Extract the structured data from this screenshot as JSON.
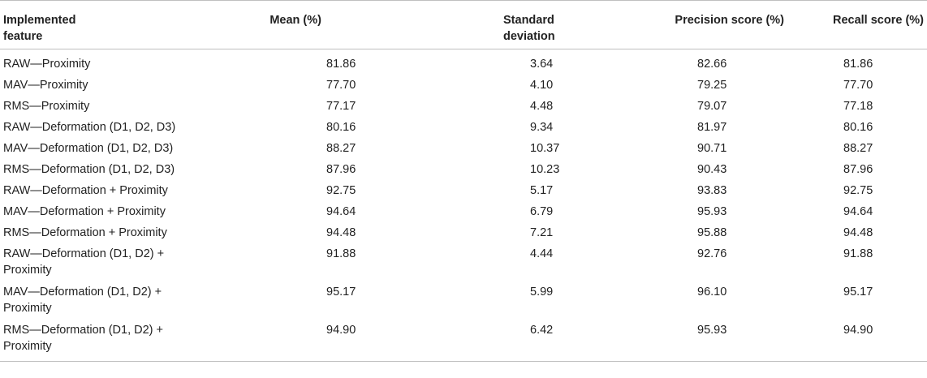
{
  "table": {
    "headers": [
      "Implemented\nfeature",
      "Mean (%)",
      "Standard\ndeviation",
      "Precision score (%)",
      "Recall score (%)"
    ],
    "rows": [
      [
        "RAW—Proximity",
        "81.86",
        "3.64",
        "82.66",
        "81.86"
      ],
      [
        "MAV—Proximity",
        "77.70",
        "4.10",
        "79.25",
        "77.70"
      ],
      [
        "RMS—Proximity",
        "77.17",
        "4.48",
        "79.07",
        "77.18"
      ],
      [
        "RAW—Deformation (D1, D2, D3)",
        "80.16",
        "9.34",
        "81.97",
        "80.16"
      ],
      [
        "MAV—Deformation (D1, D2, D3)",
        "88.27",
        "10.37",
        "90.71",
        "88.27"
      ],
      [
        "RMS—Deformation (D1, D2, D3)",
        "87.96",
        "10.23",
        "90.43",
        "87.96"
      ],
      [
        "RAW—Deformation + Proximity",
        "92.75",
        "5.17",
        "93.83",
        "92.75"
      ],
      [
        "MAV—Deformation + Proximity",
        "94.64",
        "6.79",
        "95.93",
        "94.64"
      ],
      [
        "RMS—Deformation + Proximity",
        "94.48",
        "7.21",
        "95.88",
        "94.48"
      ],
      [
        "RAW—Deformation (D1, D2) +\nProximity",
        "91.88",
        "4.44",
        "92.76",
        "91.88"
      ],
      [
        "MAV—Deformation (D1, D2) +\nProximity",
        "95.17",
        "5.99",
        "96.10",
        "95.17"
      ],
      [
        "RMS—Deformation (D1, D2) +\nProximity",
        "94.90",
        "6.42",
        "95.93",
        "94.90"
      ]
    ]
  }
}
